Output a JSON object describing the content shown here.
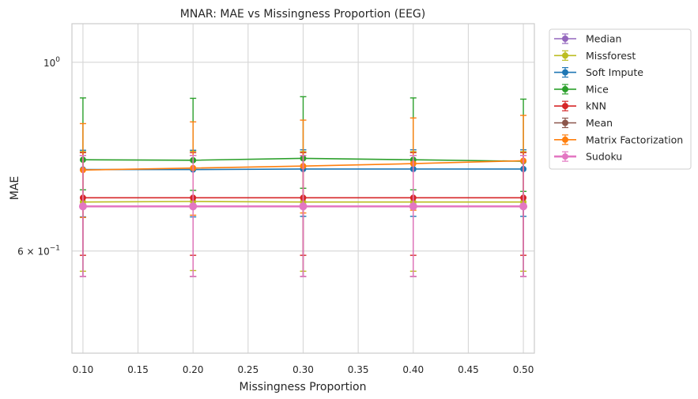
{
  "chart_data": {
    "type": "line",
    "title": "MNAR: MAE vs Missingness Proportion (EEG)",
    "xlabel": "Missingness Proportion",
    "ylabel": "MAE",
    "yscale": "log",
    "x": [
      0.1,
      0.2,
      0.3,
      0.4,
      0.5
    ],
    "xlim": [
      0.09,
      0.51
    ],
    "ylim": [
      0.455,
      1.11
    ],
    "x_ticks": [
      "0.10",
      "0.15",
      "0.20",
      "0.25",
      "0.30",
      "0.35",
      "0.40",
      "0.45",
      "0.50"
    ],
    "x_tick_values": [
      0.1,
      0.15,
      0.2,
      0.25,
      0.3,
      0.35,
      0.4,
      0.45,
      0.5
    ],
    "y_tick_labels": [
      {
        "value": 1.0,
        "base": "10",
        "exp": "0",
        "mantissa": ""
      },
      {
        "value": 0.6,
        "base": "10",
        "exp": "−1",
        "mantissa": "6 × "
      }
    ],
    "grid": true,
    "legend_position": "outside-right",
    "series": [
      {
        "name": "Median",
        "color": "#9467bd",
        "values": [
          0.677,
          0.677,
          0.677,
          0.677,
          0.677
        ],
        "err_low": [
          0.117,
          0.117,
          0.117,
          0.117,
          0.117
        ],
        "err_high": [
          0.1,
          0.1,
          0.1,
          0.1,
          0.1
        ]
      },
      {
        "name": "Missforest",
        "color": "#bcbd22",
        "values": [
          0.685,
          0.686,
          0.685,
          0.685,
          0.685
        ],
        "err_low": [
          0.117,
          0.117,
          0.117,
          0.117,
          0.117
        ],
        "err_high": [
          0.1,
          0.1,
          0.1,
          0.1,
          0.1
        ]
      },
      {
        "name": "Soft Impute",
        "color": "#1f77b4",
        "values": [
          0.748,
          0.748,
          0.749,
          0.749,
          0.749
        ],
        "err_low": [
          0.09,
          0.09,
          0.09,
          0.09,
          0.09
        ],
        "err_high": [
          0.04,
          0.04,
          0.04,
          0.04,
          0.04
        ]
      },
      {
        "name": "Mice",
        "color": "#2ca02c",
        "values": [
          0.768,
          0.767,
          0.771,
          0.768,
          0.765
        ],
        "err_low": [
          0.06,
          0.06,
          0.06,
          0.06,
          0.06
        ],
        "err_high": [
          0.14,
          0.14,
          0.14,
          0.14,
          0.14
        ]
      },
      {
        "name": "kNN",
        "color": "#d62728",
        "values": [
          0.693,
          0.693,
          0.693,
          0.693,
          0.693
        ],
        "err_low": [
          0.1,
          0.1,
          0.1,
          0.1,
          0.1
        ],
        "err_high": [
          0.09,
          0.09,
          0.09,
          0.09,
          0.09
        ]
      },
      {
        "name": "Mean",
        "color": "#8c564b",
        "values": [
          0.677,
          0.677,
          0.677,
          0.677,
          0.677
        ],
        "err_low": [
          0.117,
          0.117,
          0.117,
          0.117,
          0.117
        ],
        "err_high": [
          0.1,
          0.1,
          0.1,
          0.1,
          0.1
        ]
      },
      {
        "name": "Matrix Factorization",
        "color": "#ff7f0e",
        "values": [
          0.747,
          0.751,
          0.755,
          0.76,
          0.766
        ],
        "err_low": [
          0.09,
          0.09,
          0.09,
          0.09,
          0.09
        ],
        "err_high": [
          0.1,
          0.1,
          0.1,
          0.1,
          0.1
        ]
      },
      {
        "name": "Sudoku",
        "color": "#e377c2",
        "values": [
          0.677,
          0.677,
          0.677,
          0.677,
          0.677
        ],
        "err_low": [
          0.117,
          0.117,
          0.117,
          0.117,
          0.117
        ],
        "err_high": [
          0.1,
          0.1,
          0.1,
          0.1,
          0.1
        ]
      }
    ]
  }
}
